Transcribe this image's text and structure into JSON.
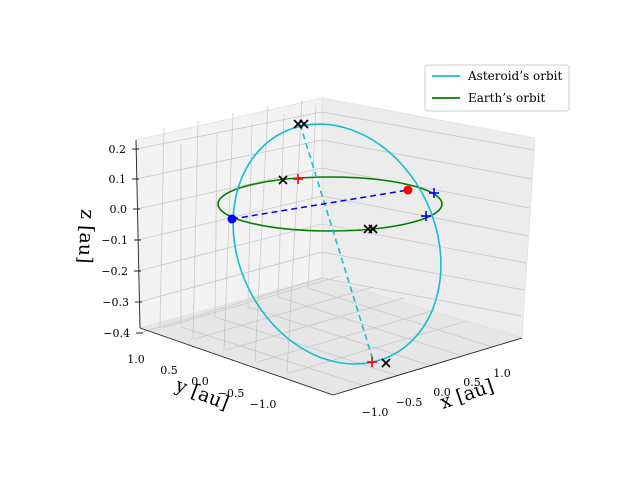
{
  "chart_data": {
    "type": "line",
    "projection": "3d",
    "grid": true,
    "legend_position": "top-right",
    "xlabel": "x [au]",
    "ylabel": "y [au]",
    "zlabel": "z [au]",
    "xlim": [
      -1.3,
      1.3
    ],
    "ylim": [
      -1.3,
      1.3
    ],
    "zlim": [
      -0.4,
      0.25
    ],
    "x_ticks": [
      "−1.0",
      "−0.5",
      "0.0",
      "0.5",
      "1.0"
    ],
    "y_ticks": [
      "1.0",
      "0.5",
      "0.0",
      "−0.5",
      "−1.0"
    ],
    "z_ticks": [
      "0.2",
      "0.1",
      "0.0",
      "−0.1",
      "−0.2",
      "−0.3",
      "−0.4"
    ],
    "series": [
      {
        "name": "Asteroid’s orbit",
        "color": "#17becf",
        "line": "solid",
        "path": [
          [
            0.33,
            -1.08,
            0.24
          ],
          [
            0.92,
            0.25,
            0.05
          ],
          [
            -0.41,
            1.02,
            -0.38
          ],
          [
            -0.78,
            -0.88,
            -0.1
          ]
        ]
      },
      {
        "name": "Earth’s orbit",
        "color": "#008000",
        "line": "solid",
        "path": [
          [
            1.0,
            0.0,
            0.0
          ],
          [
            0.0,
            1.0,
            0.0
          ],
          [
            -1.0,
            0.0,
            0.0
          ],
          [
            0.0,
            -1.0,
            0.0
          ]
        ]
      }
    ],
    "lines": [
      {
        "color": "#0000ff",
        "style": "dashed",
        "from": [
          -0.98,
          0.58,
          0.0
        ],
        "to": [
          0.98,
          -0.58,
          0.0
        ]
      },
      {
        "color": "#17becf",
        "style": "dashed",
        "from": [
          0.33,
          -1.08,
          0.24
        ],
        "to": [
          -0.41,
          1.02,
          -0.38
        ]
      }
    ],
    "points": [
      {
        "marker": "dot",
        "color": "#ff0000",
        "xyz": [
          -0.98,
          0.58,
          0.0
        ]
      },
      {
        "marker": "dot",
        "color": "#0000ff",
        "xyz": [
          0.98,
          -0.58,
          0.0
        ]
      },
      {
        "marker": "plus",
        "color": "#ff0000",
        "xyz": [
          0.68,
          -0.72,
          0.0
        ]
      },
      {
        "marker": "plus",
        "color": "#ff0000",
        "xyz": [
          -0.48,
          1.02,
          -0.38
        ]
      },
      {
        "marker": "plus",
        "color": "#0000ff",
        "xyz": [
          -0.88,
          0.45,
          0.1
        ]
      },
      {
        "marker": "plus",
        "color": "#0000ff",
        "xyz": [
          -1.05,
          0.55,
          -0.05
        ]
      },
      {
        "marker": "x",
        "color": "#000000",
        "xyz": [
          0.3,
          -1.1,
          0.24
        ]
      },
      {
        "marker": "x",
        "color": "#000000",
        "xyz": [
          0.35,
          -1.05,
          0.24
        ]
      },
      {
        "marker": "x",
        "color": "#000000",
        "xyz": [
          0.68,
          -0.76,
          0.0
        ]
      },
      {
        "marker": "x",
        "color": "#000000",
        "xyz": [
          -0.12,
          0.2,
          -0.06
        ]
      },
      {
        "marker": "x",
        "color": "#000000",
        "xyz": [
          -0.08,
          0.18,
          -0.06
        ]
      },
      {
        "marker": "x",
        "color": "#000000",
        "xyz": [
          -0.35,
          1.02,
          -0.38
        ]
      }
    ]
  }
}
